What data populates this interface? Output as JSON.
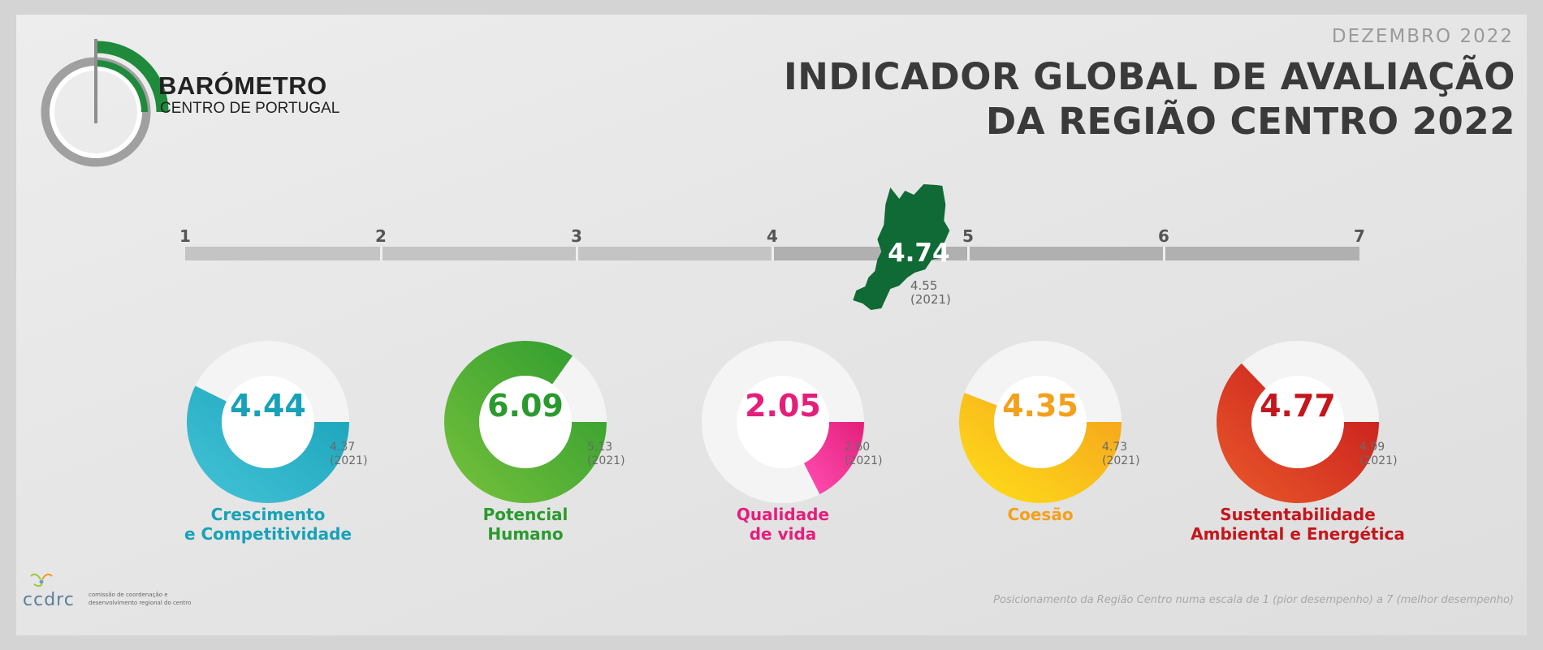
{
  "header": {
    "date": "DEZEMBRO 2022",
    "title_line1": "INDICADOR GLOBAL DE AVALIAÇÃO",
    "title_line2": "DA REGIÃO CENTRO 2022"
  },
  "logo": {
    "title": "BARÓMETRO",
    "subtitle": "CENTRO DE PORTUGAL",
    "colors": {
      "green": "#1f8a3b",
      "gray": "#9a9a9a"
    }
  },
  "chart_data": [
    {
      "type": "scale",
      "ticks": [
        "1",
        "2",
        "3",
        "4",
        "5",
        "6",
        "7"
      ],
      "range": [
        1,
        7
      ],
      "value": 4.74,
      "value_label": "4.74",
      "previous_value": 4.55,
      "previous_label": "4.55",
      "previous_year": "(2021)",
      "marker": "region-map",
      "marker_color": "#0f6a35"
    },
    {
      "type": "donut",
      "scale": [
        1,
        7
      ],
      "items": [
        {
          "name_line1": "Crescimento",
          "name_line2": "e Competitividade",
          "value": 4.44,
          "value_label": "4.44",
          "previous_value": 4.37,
          "previous_label": "4.37",
          "previous_year": "(2021)",
          "color": "#17a2b8",
          "color_light": "#45c3d8"
        },
        {
          "name_line1": "Potencial",
          "name_line2": "Humano",
          "value": 6.09,
          "value_label": "6.09",
          "previous_value": 5.13,
          "previous_label": "5.13",
          "previous_year": "(2021)",
          "color": "#2a9a2e",
          "color_light": "#78c23c"
        },
        {
          "name_line1": "Qualidade",
          "name_line2": "de vida",
          "value": 2.05,
          "value_label": "2.05",
          "previous_value": 2.6,
          "previous_label": "2.60",
          "previous_year": "(2021)",
          "color": "#e41f7b",
          "color_light": "#ff4fb3"
        },
        {
          "name_line1": "Coesão",
          "name_line2": "",
          "value": 4.35,
          "value_label": "4.35",
          "previous_value": 4.73,
          "previous_label": "4.73",
          "previous_year": "(2021)",
          "color": "#f4a01c",
          "color_light": "#ffe01a"
        },
        {
          "name_line1": "Sustentabilidade",
          "name_line2": "Ambiental e Energética",
          "value": 4.77,
          "value_label": "4.77",
          "previous_value": 4.99,
          "previous_label": "4.99",
          "previous_year": "(2021)",
          "color": "#c4161c",
          "color_light": "#ea5a2a"
        }
      ]
    }
  ],
  "footer": {
    "org_name": "ccdrc",
    "org_desc_line1": "comissão de coordenação e",
    "org_desc_line2": "desenvolvimento regional do centro",
    "note": "Posicionamento da Região Centro numa escala de 1 (pior desempenho) a 7 (melhor desempenho)"
  }
}
